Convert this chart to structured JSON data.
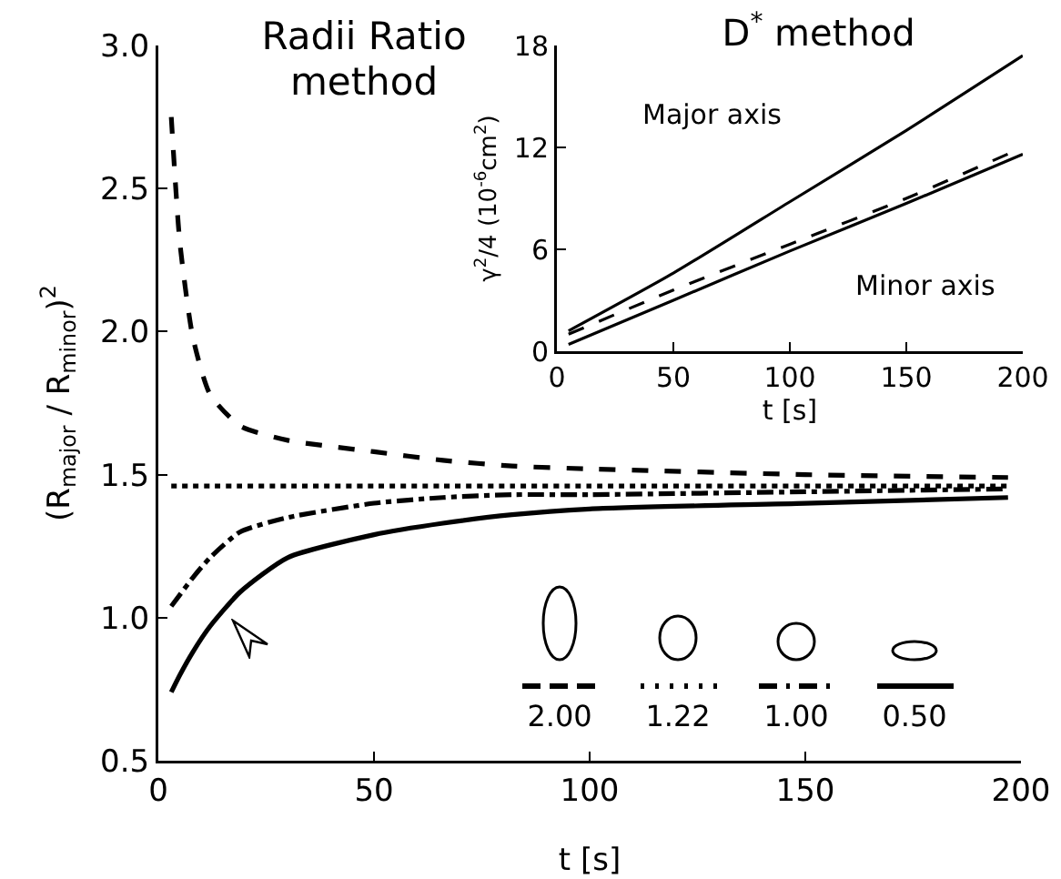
{
  "chart_data": [
    {
      "type": "line",
      "title": "Radii Ratio method",
      "xlabel": "t [s]",
      "ylabel": "(R$_{major}$ / R$_{minor}$)$^{2}$",
      "x": [
        3,
        5,
        8,
        12,
        19,
        30,
        50,
        66,
        82,
        100,
        150,
        197
      ],
      "series": [
        {
          "name": "2.00",
          "color": "#000000",
          "line_style": "dashed",
          "values": [
            2.75,
            2.31,
            1.98,
            1.78,
            1.67,
            1.62,
            1.58,
            1.55,
            1.53,
            1.52,
            1.5,
            1.49
          ]
        },
        {
          "name": "1.22",
          "color": "#000000",
          "line_style": "dotted",
          "values": [
            1.46,
            1.46,
            1.46,
            1.46,
            1.46,
            1.46,
            1.46,
            1.46,
            1.46,
            1.46,
            1.46,
            1.46
          ]
        },
        {
          "name": "1.00",
          "color": "#000000",
          "line_style": "dashdot",
          "values": [
            1.04,
            1.08,
            1.14,
            1.21,
            1.3,
            1.35,
            1.4,
            1.42,
            1.43,
            1.43,
            1.44,
            1.45
          ]
        },
        {
          "name": "0.50",
          "color": "#000000",
          "line_style": "solid",
          "values": [
            0.74,
            0.8,
            0.88,
            0.97,
            1.09,
            1.21,
            1.29,
            1.33,
            1.36,
            1.38,
            1.4,
            1.42
          ]
        }
      ],
      "xlim": [
        0,
        200
      ],
      "xticks": [
        0,
        50,
        100,
        150,
        200
      ],
      "ylim": [
        0.5,
        3.0
      ],
      "yticks": [
        0.5,
        {
          "value": 1,
          "label": "1.0"
        },
        1.5,
        {
          "value": 2,
          "label": "2.0"
        },
        2.5,
        {
          "value": 3,
          "label": "3.0"
        }
      ],
      "legend": "bottom right"
    },
    {
      "type": "line",
      "title": "D$^{*}$ method",
      "xlabel": "t [s]",
      "ylabel": "γ$^{2}$/4 (10$^{-6}$cm$^{2}$)",
      "x": [
        5,
        50,
        100,
        150,
        200
      ],
      "series": [
        {
          "name": "Major axis",
          "color": "#000000",
          "line_style": "solid",
          "values": [
            1.2,
            4.6,
            8.8,
            13.0,
            17.4
          ]
        },
        {
          "color": "#000000",
          "line_style": "dashed",
          "values": [
            1.0,
            3.6,
            6.3,
            9.0,
            12.0
          ]
        },
        {
          "name": "Minor axis",
          "color": "#000000",
          "line_style": "solid",
          "values": [
            0.4,
            3.0,
            5.9,
            8.7,
            11.6
          ]
        }
      ],
      "xlim": [
        0,
        200
      ],
      "xticks": [
        0,
        50,
        100,
        150,
        200
      ],
      "ylim": [
        0,
        18
      ],
      "yticks": [
        0,
        6,
        12,
        18
      ]
    }
  ]
}
